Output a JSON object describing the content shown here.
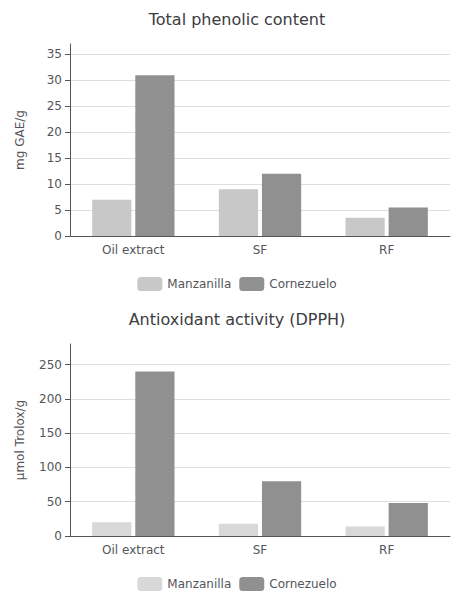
{
  "chart_data": [
    {
      "type": "bar",
      "title": "Total phenolic content",
      "ylabel": "mg GAE/g",
      "categories": [
        "Oil extract",
        "SF",
        "RF"
      ],
      "series": [
        {
          "name": "Manzanilla",
          "color": "#c8c8c8",
          "values": [
            7,
            9,
            3.5
          ]
        },
        {
          "name": "Cornezuelo",
          "color": "#909090",
          "values": [
            31,
            12,
            5.5
          ]
        }
      ],
      "ylim": [
        0,
        37
      ],
      "yticks": [
        0,
        5,
        10,
        15,
        20,
        25,
        30,
        35
      ],
      "grid": true,
      "legend": "bottom"
    },
    {
      "type": "bar",
      "title": "Antioxidant activity (DPPH)",
      "ylabel": "μmol Trolox/g",
      "categories": [
        "Oil extract",
        "SF",
        "RF"
      ],
      "series": [
        {
          "name": "Manzanilla",
          "color": "#d8d8d8",
          "values": [
            20,
            18,
            14
          ]
        },
        {
          "name": "Cornezuelo",
          "color": "#909090",
          "values": [
            240,
            80,
            48
          ]
        }
      ],
      "ylim": [
        0,
        280
      ],
      "yticks": [
        0,
        50,
        100,
        150,
        200,
        250
      ],
      "grid": true,
      "legend": "bottom"
    }
  ]
}
